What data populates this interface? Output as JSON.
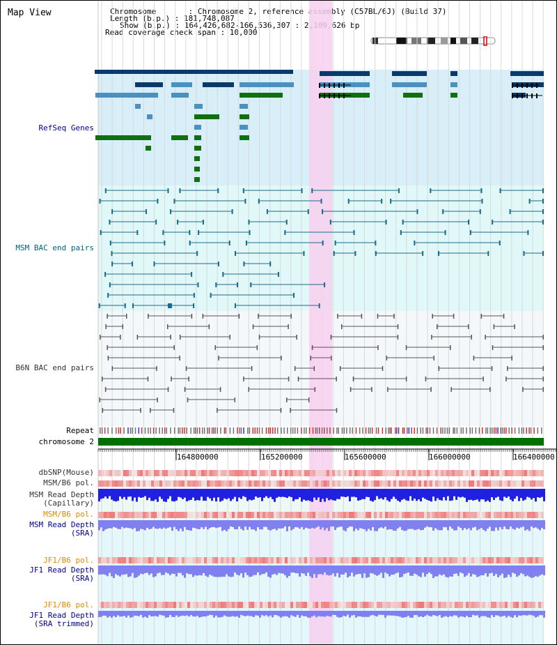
{
  "page": {
    "title": "Map View"
  },
  "info": {
    "chromosome": "Chromosome       : Chromosome 2, reference assembly (C57BL/6J) (Build 37)",
    "length": "Length (b.p.) : 181,748,087",
    "show": "Show (b.p.) : 164,426,682-166,536,307 : 2,109,626 bp",
    "span": "Read coverage check span : 10,000"
  },
  "tracks": {
    "refseq": "RefSeq Genes",
    "msm_bac": "MSM BAC end pairs",
    "b6n_bac": "B6N BAC end pairs",
    "repeat": "Repeat",
    "chromosome": "chromosome 2",
    "dbsnp": "dbSNP(Mouse)",
    "msm_pol": "MSM/B6 pol.",
    "msm_depth_cap_1": "MSM Read Depth",
    "msm_depth_cap_2": "(Capillary)",
    "msm_pol_sra": "MSM/B6 pol.",
    "msm_depth_sra_1": "MSM Read Depth",
    "msm_depth_sra_2": "(SRA)",
    "jf1_pol": "JF1/B6 pol.",
    "jf1_depth_1": "JF1 Read Depth",
    "jf1_depth_2": "(SRA)",
    "jf1_pol_trim": "JF1/B6 pol.",
    "jf1_depth_trim_1": "JF1 Read Depth",
    "jf1_depth_trim_2": "(SRA trimmed)"
  },
  "axis": {
    "ticks": [
      "164800000",
      "165200000",
      "165600000",
      "166000000",
      "166400000"
    ]
  },
  "colors": {
    "refseq_bg": "#d8eef8",
    "msm_bg": "#e0f8f8",
    "highlight": "#f8d0f0",
    "gene_dark": "#0a3a6a",
    "gene_mid": "#4a90c0",
    "gene_green": "#107010",
    "msm_line": "#1a6a8a",
    "b6n_line": "#555555",
    "chrom_bar": "#007000",
    "depth_blue": "#2020e0",
    "depth_light": "#8080f0",
    "pol_red": "#f04040"
  }
}
